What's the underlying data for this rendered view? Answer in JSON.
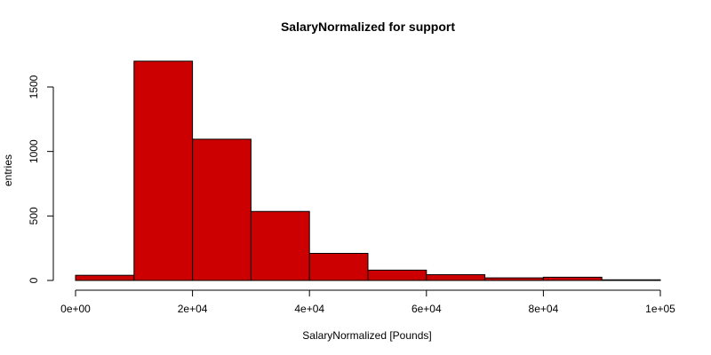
{
  "chart_data": {
    "type": "bar",
    "title": "SalaryNormalized for support",
    "xlabel": "SalaryNormalized [Pounds]",
    "ylabel": "entries",
    "bin_edges": [
      0,
      10000,
      20000,
      30000,
      40000,
      50000,
      60000,
      70000,
      80000,
      90000,
      100000
    ],
    "values": [
      40,
      1700,
      1095,
      535,
      210,
      80,
      45,
      20,
      25,
      5
    ],
    "xlim": [
      0,
      100000
    ],
    "ylim": [
      0,
      1750
    ],
    "x_ticks": [
      0,
      20000,
      40000,
      60000,
      80000,
      100000
    ],
    "x_tick_labels": [
      "0e+00",
      "2e+04",
      "4e+04",
      "6e+04",
      "8e+04",
      "1e+05"
    ],
    "y_ticks": [
      0,
      500,
      1000,
      1500
    ],
    "y_tick_labels": [
      "0",
      "500",
      "1000",
      "1500"
    ],
    "bar_color": "#cc0000",
    "grid": false,
    "legend": "none"
  }
}
